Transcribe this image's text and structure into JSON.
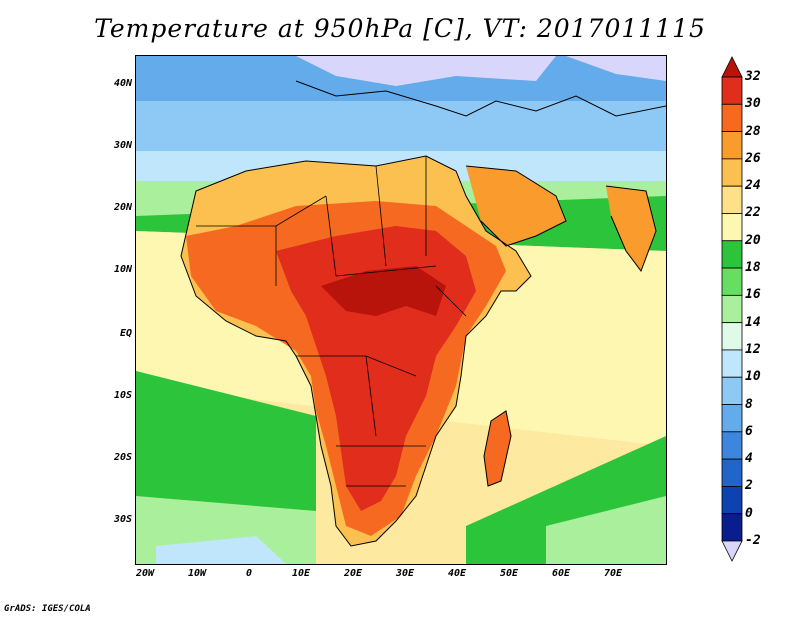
{
  "title": "Temperature at 950hPa [C], VT: 2017011115",
  "credit": "GrADS: IGES/COLA",
  "lat_labels": [
    "40N",
    "30N",
    "20N",
    "10N",
    "EQ",
    "10S",
    "20S",
    "30S"
  ],
  "lon_labels": [
    "20W",
    "10W",
    "0",
    "10E",
    "20E",
    "30E",
    "40E",
    "50E",
    "60E",
    "70E"
  ],
  "colorbar": {
    "labels": [
      "32",
      "30",
      "28",
      "26",
      "24",
      "22",
      "20",
      "18",
      "16",
      "14",
      "12",
      "10",
      "8",
      "6",
      "4",
      "2",
      "0",
      "-2"
    ],
    "colors": [
      "#e02d1c",
      "#f56a20",
      "#f99b2d",
      "#fbc04f",
      "#fde087",
      "#fdf7b2",
      "#2bc43b",
      "#67dd62",
      "#a9ef9c",
      "#dffae9",
      "#bfe6fb",
      "#8ec9f5",
      "#64abec",
      "#3d86dd",
      "#2165c9",
      "#0d43b0",
      "#0a1d8c"
    ],
    "top_color": "#b8140c",
    "bottom_color": "#d9d6fb"
  },
  "colors": {
    "ocean_warm": "#fde9a0",
    "ocean_tropic": "#fdf7b2",
    "ocean_green": "#2bc43b",
    "ocean_lightgreen": "#a9ef9c",
    "sea_blue": "#8ec9f5",
    "land_red": "#e02d1c",
    "land_orange": "#f56a20"
  }
}
